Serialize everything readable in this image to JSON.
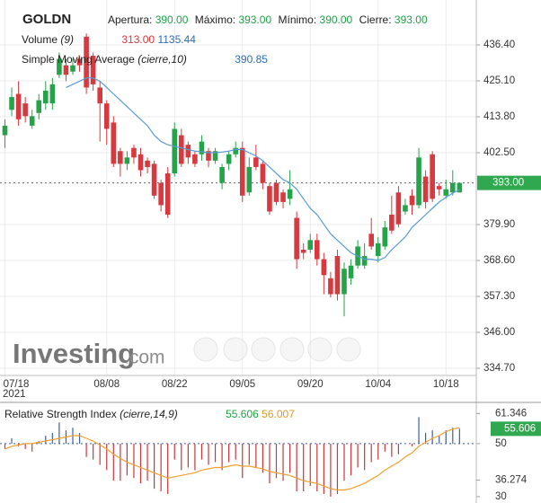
{
  "chart_data": [
    {
      "type": "candlestick",
      "symbol": "GOLDN",
      "ohlc_legend": [
        {
          "label": "Apertura:",
          "value": "390.00"
        },
        {
          "label": "Máximo:",
          "value": "393.00"
        },
        {
          "label": "Mínimo:",
          "value": "390.00"
        },
        {
          "label": "Cierre:",
          "value": "393.00"
        }
      ],
      "volume_legend": {
        "name": "Volume",
        "params": "(9)",
        "value": "313.00",
        "average": "1135.44"
      },
      "logo": {
        "name": "Investing",
        "suffix": ".com"
      },
      "year": "2021",
      "categories": [
        "07/18",
        null,
        null,
        null,
        null,
        null,
        null,
        null,
        null,
        null,
        null,
        null,
        null,
        null,
        null,
        "08/08",
        null,
        null,
        null,
        null,
        null,
        null,
        null,
        null,
        null,
        "08/22",
        null,
        null,
        null,
        null,
        null,
        null,
        null,
        null,
        null,
        "09/05",
        null,
        null,
        null,
        null,
        null,
        null,
        null,
        null,
        null,
        "09/20",
        null,
        null,
        null,
        null,
        null,
        null,
        null,
        null,
        null,
        "10/04",
        null,
        null,
        null,
        null,
        null,
        null,
        null,
        null,
        null,
        "10/18",
        null,
        null
      ],
      "open": [
        408,
        416,
        421,
        418,
        411,
        415,
        418,
        418,
        427,
        430,
        428,
        432,
        439,
        433,
        423,
        418,
        412,
        403,
        399,
        404,
        402,
        400,
        399,
        393,
        396,
        396,
        408,
        405,
        402,
        402,
        403,
        400,
        393,
        399,
        402,
        404,
        390,
        401,
        399,
        392,
        393,
        390,
        388,
        382,
        372,
        372,
        375,
        369,
        363,
        370,
        358,
        363,
        367,
        367,
        377,
        370,
        373,
        383,
        390,
        384,
        389,
        386,
        395,
        402,
        392,
        389,
        390,
        390
      ],
      "high": [
        413,
        423,
        425,
        420,
        416,
        421,
        425,
        426,
        434,
        432,
        432,
        433,
        440,
        434,
        425,
        419,
        414,
        404,
        403,
        405,
        404,
        401,
        400,
        394,
        398,
        412,
        410,
        406,
        403,
        408,
        404,
        404,
        399,
        403,
        406,
        406,
        401,
        405,
        400,
        393,
        394,
        391,
        397,
        384,
        374,
        377,
        377,
        371,
        365,
        372,
        368,
        369,
        375,
        374,
        382,
        376,
        381,
        389,
        392,
        388,
        391,
        404,
        397,
        403,
        393,
        394,
        397,
        393
      ],
      "low": [
        404,
        414,
        411,
        412,
        410,
        413,
        416,
        416,
        426,
        425,
        427,
        428,
        421,
        422,
        406,
        405,
        398,
        395,
        397,
        399,
        395,
        396,
        388,
        384,
        382,
        395,
        398,
        399,
        398,
        400,
        398,
        399,
        391,
        397,
        401,
        387,
        389,
        397,
        391,
        383,
        386,
        385,
        386,
        366,
        369,
        371,
        367,
        358,
        357,
        356,
        351,
        361,
        366,
        366,
        372,
        368,
        372,
        377,
        379,
        383,
        383,
        385,
        385,
        387,
        389,
        388,
        389,
        390
      ],
      "close": [
        411,
        420,
        413,
        414,
        414,
        419,
        422,
        424,
        432,
        427,
        430,
        430,
        423,
        424,
        418,
        410,
        399,
        399,
        401,
        401,
        397,
        398,
        389,
        386,
        383,
        410,
        399,
        401,
        399,
        406,
        400,
        403,
        398,
        402,
        404,
        389,
        398,
        398,
        393,
        384,
        387,
        387,
        391,
        369,
        371,
        375,
        369,
        364,
        358,
        358,
        366,
        367,
        373,
        370,
        373,
        374,
        379,
        378,
        380,
        386,
        386,
        401,
        387,
        388,
        391,
        391,
        393,
        393
      ],
      "up_color": "#26a34a",
      "down_color": "#d6393f",
      "overlays": [
        {
          "name": "Simple Moving Average",
          "params": "(cierre,10)",
          "color": "#5b9bd5",
          "values": [
            null,
            null,
            null,
            null,
            null,
            null,
            null,
            null,
            null,
            423,
            424,
            425,
            426,
            426,
            425,
            423,
            421,
            419,
            417,
            415,
            413,
            411,
            408,
            406,
            405,
            404.5,
            404,
            403.5,
            403,
            402.8,
            402.5,
            402.5,
            402.7,
            403,
            403.5,
            403.5,
            402.5,
            401.5,
            400,
            398,
            396,
            394,
            393,
            391,
            388,
            385,
            383,
            380,
            377,
            375,
            373,
            371,
            370,
            369,
            369,
            368.6,
            369.5,
            372,
            374,
            376,
            379,
            381,
            383,
            385,
            387,
            388.5,
            389.8,
            390.85
          ]
        }
      ],
      "last": {
        "value": 393,
        "label": "393.00"
      },
      "ylim": [
        332.44,
        450.53
      ],
      "yticks": [
        {
          "value": 436.4,
          "label": "436.40"
        },
        {
          "value": 425.1,
          "label": "425.10"
        },
        {
          "value": 413.8,
          "label": "413.80"
        },
        {
          "value": 402.5,
          "label": "402.50"
        },
        {
          "value": 379.9,
          "label": "379.90"
        },
        {
          "value": 368.6,
          "label": "368.60"
        },
        {
          "value": 357.3,
          "label": "357.30"
        },
        {
          "value": 346,
          "label": "346.00"
        },
        {
          "value": 334.7,
          "label": "334.70"
        }
      ],
      "grid": true
    },
    {
      "type": "rsi",
      "name": "Relative Strength Index",
      "params": "(cierre,14,9)",
      "values": [
        48,
        52,
        49,
        48,
        47,
        51,
        53,
        54,
        58,
        55,
        56,
        54,
        45,
        44,
        42,
        40,
        36,
        36,
        38,
        37,
        35,
        36,
        33,
        32,
        31,
        44,
        40,
        41,
        40,
        44,
        42,
        43,
        40,
        43,
        44,
        37,
        42,
        41,
        39,
        35,
        37,
        36,
        39,
        32,
        32,
        34,
        32,
        31,
        30,
        31,
        36,
        38,
        41,
        40,
        43,
        44,
        47,
        45,
        46,
        50,
        49,
        60,
        54,
        55,
        53,
        55,
        56,
        55.606
      ],
      "up_color": "#3b5da8",
      "down_color": "#c8383c",
      "signal": {
        "color": "#f0a030",
        "values": [
          48,
          49,
          49.5,
          50,
          50,
          50.5,
          51,
          51.5,
          52,
          52.5,
          53,
          53,
          52,
          51,
          49.5,
          48,
          46,
          44.5,
          43,
          42,
          41,
          40,
          39,
          38,
          37,
          37.5,
          38,
          38.5,
          39,
          40,
          40.5,
          41,
          41,
          41.5,
          42,
          41.5,
          41.5,
          41,
          40.5,
          39.5,
          39,
          38.5,
          38,
          37,
          36,
          35.5,
          35,
          34,
          33,
          32.5,
          32.5,
          33,
          34,
          35,
          36.5,
          38,
          40,
          41.5,
          43,
          45,
          46.5,
          49,
          50.5,
          52,
          53,
          54.5,
          55.5,
          56.007
        ]
      },
      "ylim": [
        27.6,
        64.2
      ],
      "yticks": [
        61.346,
        50,
        36.274,
        30
      ]
    }
  ]
}
